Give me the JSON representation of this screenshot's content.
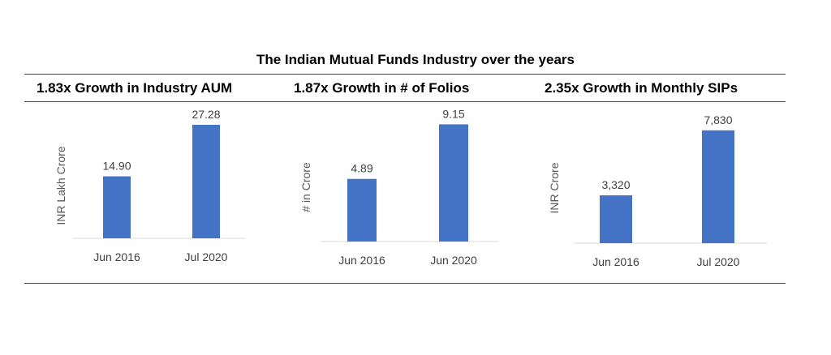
{
  "page": {
    "title": "The Indian Mutual Funds Industry over the years",
    "accent_color": "#4472C4"
  },
  "chart_data": [
    {
      "type": "bar",
      "title": "1.83x Growth in Industry AUM",
      "categories": [
        "Jun 2016",
        "Jul 2020"
      ],
      "values": [
        14.9,
        27.28
      ],
      "data_labels": [
        "14.90",
        "27.28"
      ],
      "xlabel": "",
      "ylabel": "INR Lakh Crore",
      "ylim": [
        0,
        30
      ],
      "grid": false,
      "legend": "none",
      "color": "#4472C4"
    },
    {
      "type": "bar",
      "title": "1.87x Growth in # of Folios",
      "categories": [
        "Jun 2016",
        "Jun 2020"
      ],
      "values": [
        4.89,
        9.15
      ],
      "data_labels": [
        "4.89",
        "9.15"
      ],
      "xlabel": "",
      "ylabel": "# in Crore",
      "ylim": [
        0,
        10
      ],
      "grid": false,
      "legend": "none",
      "color": "#4472C4"
    },
    {
      "type": "bar",
      "title": "2.35x Growth in Monthly SIPs",
      "categories": [
        "Jun 2016",
        "Jul 2020"
      ],
      "values": [
        3320,
        7830
      ],
      "data_labels": [
        "3,320",
        "7,830"
      ],
      "xlabel": "",
      "ylabel": "INR Crore",
      "ylim": [
        0,
        9000
      ],
      "grid": false,
      "legend": "none",
      "color": "#4472C4"
    }
  ]
}
